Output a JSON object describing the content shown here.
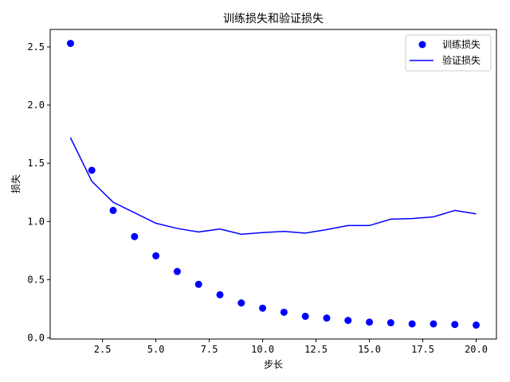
{
  "chart_data": {
    "type": "line",
    "title": "训练损失和验证损失",
    "xlabel": "步长",
    "ylabel": "损失",
    "xlim": [
      0.05,
      20.95
    ],
    "ylim": [
      -0.01,
      2.65
    ],
    "xticks": [
      2.5,
      5.0,
      7.5,
      10.0,
      12.5,
      15.0,
      17.5,
      20.0
    ],
    "xtick_labels": [
      "2.5",
      "5.0",
      "7.5",
      "10.0",
      "12.5",
      "15.0",
      "17.5",
      "20.0"
    ],
    "yticks": [
      0.0,
      0.5,
      1.0,
      1.5,
      2.0,
      2.5
    ],
    "ytick_labels": [
      "0.0",
      "0.5",
      "1.0",
      "1.5",
      "2.0",
      "2.5"
    ],
    "grid": false,
    "legend_position": "top-right",
    "x": [
      1,
      2,
      3,
      4,
      5,
      6,
      7,
      8,
      9,
      10,
      11,
      12,
      13,
      14,
      15,
      16,
      17,
      18,
      19,
      20
    ],
    "series": [
      {
        "name": "训练损失",
        "style": "markers",
        "color": "#0000ff",
        "values": [
          2.53,
          1.44,
          1.095,
          0.87,
          0.705,
          0.57,
          0.46,
          0.37,
          0.3,
          0.255,
          0.22,
          0.185,
          0.17,
          0.15,
          0.135,
          0.13,
          0.12,
          0.12,
          0.115,
          0.11
        ]
      },
      {
        "name": "验证损失",
        "style": "line",
        "color": "#0000ff",
        "values": [
          1.72,
          1.345,
          1.165,
          1.075,
          0.985,
          0.94,
          0.91,
          0.935,
          0.89,
          0.905,
          0.915,
          0.9,
          0.93,
          0.965,
          0.965,
          1.02,
          1.025,
          1.04,
          1.095,
          1.065
        ]
      }
    ]
  }
}
